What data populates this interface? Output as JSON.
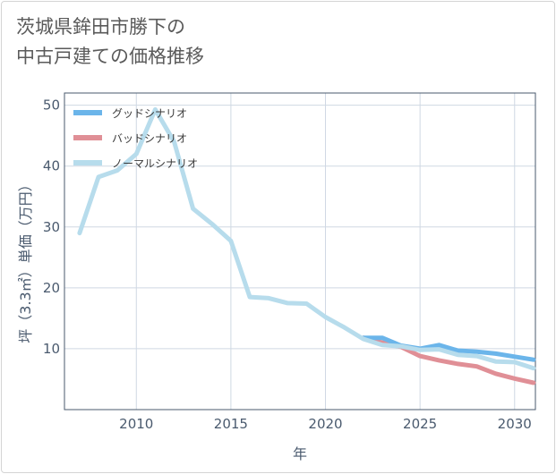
{
  "title_lines": [
    "茨城県鉾田市勝下の",
    "中古戸建ての価格推移"
  ],
  "chart_data": {
    "type": "line",
    "xlabel": "年",
    "ylabel": "坪（3.3㎡）単価（万円）",
    "xlim": [
      2006.2,
      2031.1
    ],
    "ylim": [
      0,
      52
    ],
    "xticks": [
      2010,
      2015,
      2020,
      2025,
      2030
    ],
    "yticks": [
      10,
      20,
      30,
      40,
      50
    ],
    "legend_position": "top-left",
    "series": [
      {
        "name": "グッドシナリオ",
        "color": "#6bb5ea",
        "x": [
          2022,
          2023,
          2024,
          2025,
          2026,
          2027,
          2028,
          2029,
          2030,
          2031
        ],
        "values": [
          11.8,
          11.8,
          10.5,
          10.0,
          10.6,
          9.7,
          9.5,
          9.2,
          8.7,
          8.2
        ]
      },
      {
        "name": "バッドシナリオ",
        "color": "#e08f96",
        "x": [
          2022,
          2023,
          2024,
          2025,
          2026,
          2027,
          2028,
          2029,
          2030,
          2031
        ],
        "values": [
          11.8,
          11.0,
          10.3,
          8.8,
          8.1,
          7.5,
          7.1,
          5.9,
          5.1,
          4.4
        ]
      },
      {
        "name": "ノーマルシナリオ",
        "color": "#b7dcec",
        "x": [
          2007,
          2008,
          2009,
          2010,
          2011,
          2012,
          2013,
          2014,
          2015,
          2016,
          2017,
          2018,
          2019,
          2020,
          2021,
          2022,
          2023,
          2024,
          2025,
          2026,
          2027,
          2028,
          2029,
          2030,
          2031
        ],
        "values": [
          29.0,
          38.2,
          39.3,
          42.0,
          49.3,
          44.0,
          33.0,
          30.5,
          27.7,
          18.5,
          18.3,
          17.5,
          17.4,
          15.2,
          13.5,
          11.6,
          10.6,
          10.4,
          9.8,
          9.9,
          9.0,
          8.8,
          7.9,
          7.8,
          6.8
        ]
      }
    ]
  }
}
